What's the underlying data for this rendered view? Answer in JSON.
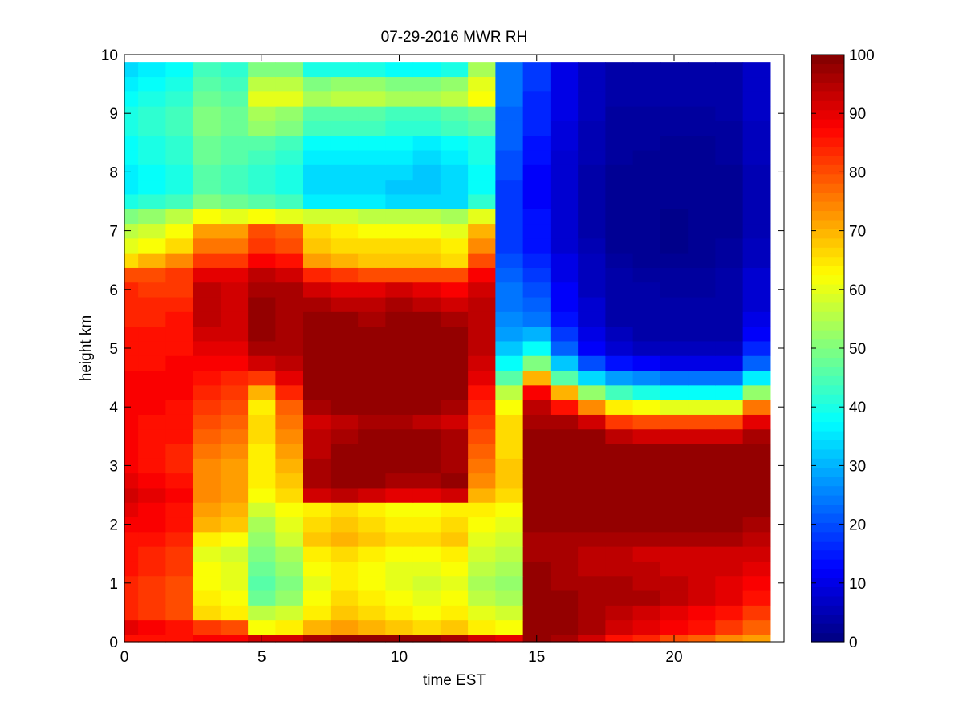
{
  "chart_data": {
    "type": "heatmap",
    "title": "07-29-2016 MWR RH",
    "xlabel": "time EST",
    "ylabel": "height km",
    "xlim": [
      0,
      24
    ],
    "ylim": [
      0,
      10
    ],
    "x_ticks": [
      0,
      5,
      10,
      15,
      20
    ],
    "y_ticks": [
      0,
      1,
      2,
      3,
      4,
      5,
      6,
      7,
      8,
      9,
      10
    ],
    "colormap": "jet",
    "clim": [
      0,
      100
    ],
    "colorbar_ticks": [
      0,
      10,
      20,
      30,
      40,
      50,
      60,
      70,
      80,
      90,
      100
    ],
    "time_hours": [
      0,
      1,
      2,
      3,
      4,
      5,
      6,
      7,
      8,
      9,
      10,
      11,
      12,
      13,
      14,
      15,
      16,
      17,
      18,
      19,
      20,
      21,
      22,
      23
    ],
    "heights_km": [
      0,
      0.25,
      0.5,
      0.75,
      1,
      1.25,
      1.5,
      1.75,
      2,
      2.25,
      2.5,
      2.75,
      3,
      3.25,
      3.5,
      3.75,
      4,
      4.25,
      4.5,
      4.75,
      5,
      5.25,
      5.5,
      5.75,
      6,
      6.25,
      6.5,
      6.75,
      7,
      7.25,
      7.5,
      7.75,
      8,
      8.25,
      8.5,
      8.75,
      9,
      9.25,
      9.5,
      9.75
    ],
    "rh_percent": [
      [
        86,
        86,
        86,
        88,
        88,
        92,
        92,
        96,
        98,
        98,
        98,
        98,
        96,
        92,
        90,
        98,
        96,
        92,
        86,
        84,
        80,
        78,
        74,
        72
      ],
      [
        90,
        88,
        86,
        82,
        80,
        62,
        64,
        70,
        72,
        70,
        68,
        66,
        68,
        64,
        62,
        98,
        98,
        96,
        92,
        90,
        88,
        86,
        82,
        78
      ],
      [
        84,
        82,
        80,
        66,
        64,
        56,
        58,
        64,
        68,
        66,
        64,
        62,
        64,
        60,
        58,
        98,
        98,
        96,
        94,
        92,
        90,
        88,
        86,
        82
      ],
      [
        84,
        82,
        80,
        64,
        62,
        48,
        52,
        62,
        66,
        64,
        62,
        60,
        62,
        56,
        54,
        98,
        98,
        96,
        96,
        96,
        94,
        92,
        90,
        86
      ],
      [
        84,
        82,
        80,
        62,
        60,
        46,
        50,
        60,
        64,
        62,
        60,
        58,
        60,
        54,
        52,
        98,
        96,
        96,
        96,
        94,
        94,
        92,
        90,
        88
      ],
      [
        86,
        84,
        82,
        62,
        60,
        48,
        52,
        62,
        64,
        62,
        60,
        60,
        62,
        56,
        54,
        98,
        96,
        94,
        94,
        94,
        92,
        92,
        92,
        90
      ],
      [
        86,
        84,
        82,
        60,
        58,
        50,
        54,
        64,
        66,
        64,
        62,
        62,
        64,
        58,
        56,
        96,
        96,
        94,
        94,
        92,
        92,
        92,
        92,
        92
      ],
      [
        86,
        86,
        84,
        64,
        62,
        52,
        58,
        68,
        70,
        68,
        66,
        66,
        68,
        60,
        58,
        96,
        96,
        96,
        96,
        96,
        96,
        96,
        96,
        94
      ],
      [
        88,
        88,
        86,
        70,
        68,
        54,
        60,
        66,
        68,
        66,
        64,
        64,
        66,
        62,
        60,
        98,
        98,
        98,
        98,
        98,
        98,
        98,
        98,
        96
      ],
      [
        90,
        88,
        86,
        72,
        70,
        58,
        62,
        64,
        66,
        64,
        62,
        62,
        64,
        64,
        62,
        98,
        98,
        98,
        98,
        98,
        98,
        98,
        98,
        98
      ],
      [
        92,
        90,
        88,
        74,
        72,
        62,
        66,
        92,
        94,
        92,
        90,
        90,
        92,
        70,
        66,
        98,
        98,
        98,
        98,
        98,
        98,
        98,
        98,
        98
      ],
      [
        90,
        88,
        86,
        74,
        72,
        64,
        68,
        96,
        98,
        98,
        96,
        96,
        98,
        74,
        68,
        98,
        98,
        98,
        98,
        98,
        98,
        98,
        98,
        98
      ],
      [
        88,
        86,
        84,
        74,
        72,
        64,
        70,
        96,
        98,
        98,
        98,
        98,
        96,
        76,
        68,
        98,
        98,
        98,
        98,
        98,
        98,
        98,
        98,
        98
      ],
      [
        88,
        86,
        84,
        76,
        74,
        64,
        72,
        94,
        98,
        98,
        98,
        98,
        96,
        78,
        66,
        98,
        98,
        98,
        98,
        98,
        98,
        98,
        98,
        98
      ],
      [
        88,
        86,
        86,
        78,
        76,
        66,
        74,
        94,
        96,
        98,
        98,
        98,
        96,
        80,
        66,
        98,
        98,
        98,
        94,
        92,
        92,
        92,
        92,
        96
      ],
      [
        88,
        86,
        86,
        80,
        78,
        66,
        76,
        92,
        94,
        96,
        96,
        94,
        92,
        82,
        66,
        96,
        96,
        92,
        82,
        80,
        80,
        80,
        80,
        90
      ],
      [
        88,
        88,
        86,
        82,
        80,
        64,
        78,
        96,
        98,
        98,
        98,
        98,
        96,
        84,
        62,
        94,
        86,
        74,
        64,
        62,
        60,
        60,
        60,
        76
      ],
      [
        88,
        88,
        88,
        84,
        82,
        70,
        84,
        98,
        98,
        98,
        98,
        98,
        98,
        86,
        56,
        88,
        70,
        52,
        44,
        40,
        38,
        38,
        38,
        52
      ],
      [
        88,
        88,
        88,
        86,
        84,
        82,
        90,
        98,
        98,
        98,
        98,
        98,
        98,
        90,
        46,
        70,
        46,
        34,
        28,
        26,
        24,
        24,
        24,
        36
      ],
      [
        86,
        86,
        88,
        88,
        88,
        92,
        94,
        98,
        98,
        98,
        98,
        98,
        98,
        92,
        38,
        50,
        32,
        20,
        14,
        12,
        10,
        10,
        10,
        22
      ],
      [
        86,
        86,
        86,
        90,
        90,
        96,
        96,
        98,
        98,
        98,
        98,
        98,
        98,
        94,
        32,
        38,
        22,
        12,
        8,
        6,
        6,
        6,
        6,
        16
      ],
      [
        86,
        86,
        86,
        92,
        92,
        98,
        96,
        98,
        98,
        98,
        98,
        98,
        98,
        94,
        28,
        30,
        18,
        10,
        6,
        4,
        4,
        4,
        4,
        12
      ],
      [
        84,
        84,
        86,
        94,
        92,
        98,
        96,
        98,
        98,
        96,
        98,
        98,
        96,
        94,
        26,
        24,
        14,
        8,
        4,
        4,
        4,
        4,
        4,
        10
      ],
      [
        84,
        84,
        84,
        94,
        92,
        98,
        96,
        96,
        94,
        94,
        96,
        94,
        92,
        94,
        24,
        22,
        12,
        8,
        4,
        4,
        4,
        4,
        4,
        8
      ],
      [
        84,
        82,
        82,
        94,
        92,
        96,
        96,
        92,
        90,
        90,
        92,
        90,
        88,
        92,
        24,
        20,
        12,
        6,
        4,
        4,
        3,
        3,
        4,
        8
      ],
      [
        80,
        80,
        82,
        90,
        90,
        94,
        92,
        84,
        82,
        80,
        80,
        80,
        80,
        88,
        22,
        18,
        10,
        6,
        4,
        3,
        3,
        3,
        4,
        8
      ],
      [
        66,
        70,
        74,
        82,
        82,
        88,
        86,
        72,
        70,
        68,
        68,
        68,
        66,
        80,
        20,
        16,
        10,
        6,
        3,
        2,
        2,
        2,
        3,
        6
      ],
      [
        60,
        62,
        66,
        76,
        76,
        82,
        80,
        68,
        66,
        66,
        66,
        66,
        64,
        74,
        18,
        14,
        8,
        5,
        2,
        2,
        1,
        2,
        3,
        6
      ],
      [
        56,
        58,
        62,
        72,
        72,
        80,
        78,
        66,
        64,
        62,
        62,
        62,
        60,
        70,
        18,
        14,
        8,
        4,
        2,
        2,
        1,
        2,
        2,
        5
      ],
      [
        50,
        52,
        56,
        62,
        60,
        62,
        60,
        58,
        58,
        56,
        56,
        56,
        54,
        60,
        18,
        14,
        8,
        4,
        2,
        2,
        1,
        2,
        2,
        5
      ],
      [
        40,
        42,
        44,
        50,
        48,
        46,
        44,
        36,
        36,
        36,
        34,
        34,
        34,
        42,
        18,
        12,
        8,
        4,
        2,
        2,
        2,
        2,
        2,
        5
      ],
      [
        36,
        38,
        40,
        46,
        44,
        42,
        40,
        34,
        34,
        34,
        32,
        32,
        34,
        38,
        18,
        12,
        8,
        4,
        2,
        2,
        2,
        2,
        2,
        5
      ],
      [
        36,
        38,
        40,
        46,
        44,
        42,
        40,
        34,
        34,
        34,
        34,
        32,
        34,
        38,
        20,
        12,
        8,
        4,
        2,
        2,
        2,
        2,
        2,
        5
      ],
      [
        38,
        40,
        42,
        48,
        46,
        44,
        42,
        36,
        36,
        36,
        36,
        34,
        36,
        40,
        20,
        14,
        8,
        5,
        3,
        2,
        2,
        2,
        3,
        6
      ],
      [
        38,
        40,
        42,
        48,
        46,
        46,
        44,
        38,
        38,
        38,
        38,
        36,
        38,
        40,
        22,
        14,
        9,
        5,
        3,
        3,
        2,
        2,
        3,
        6
      ],
      [
        40,
        42,
        44,
        50,
        48,
        52,
        50,
        44,
        44,
        44,
        42,
        42,
        44,
        46,
        22,
        16,
        9,
        5,
        3,
        3,
        3,
        3,
        3,
        6
      ],
      [
        40,
        42,
        44,
        50,
        48,
        54,
        52,
        46,
        46,
        46,
        44,
        44,
        46,
        48,
        22,
        16,
        10,
        6,
        3,
        3,
        3,
        3,
        4,
        7
      ],
      [
        38,
        40,
        42,
        48,
        46,
        60,
        60,
        54,
        56,
        56,
        54,
        54,
        56,
        62,
        24,
        16,
        10,
        6,
        4,
        4,
        4,
        4,
        4,
        7
      ],
      [
        36,
        38,
        40,
        46,
        44,
        56,
        56,
        50,
        52,
        52,
        50,
        50,
        52,
        60,
        24,
        18,
        10,
        6,
        4,
        4,
        4,
        4,
        4,
        7
      ],
      [
        34,
        36,
        38,
        44,
        42,
        50,
        50,
        40,
        40,
        40,
        38,
        38,
        40,
        54,
        24,
        18,
        10,
        6,
        4,
        4,
        4,
        4,
        4,
        7
      ]
    ]
  }
}
